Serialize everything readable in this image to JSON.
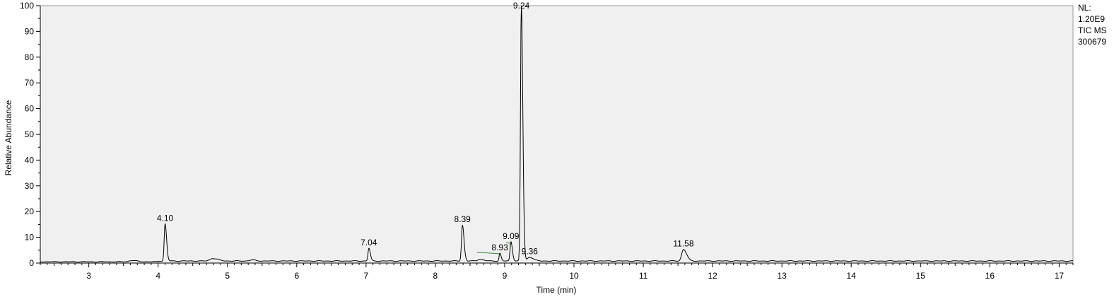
{
  "side_info": {
    "line1": "NL:",
    "line2": "1.20E9",
    "line3": "TIC  MS",
    "line4": "300679"
  },
  "chart_data": {
    "type": "line",
    "title": "",
    "xlabel": "Time (min)",
    "ylabel": "Relative Abundance",
    "xlim": [
      2.3,
      17.2
    ],
    "ylim": [
      0,
      100
    ],
    "x_ticks": [
      3,
      4,
      5,
      6,
      7,
      8,
      9,
      10,
      11,
      12,
      13,
      14,
      15,
      16,
      17
    ],
    "y_ticks": [
      0,
      10,
      20,
      30,
      40,
      50,
      60,
      70,
      80,
      90,
      100
    ],
    "grid": false,
    "background": "#f0f0f0",
    "trace_color": "#000000",
    "integration_color": "#2e8b2e",
    "baseline": 0.8,
    "peaks": [
      {
        "rt": 3.62,
        "height": 0.5,
        "width": 0.04
      },
      {
        "rt": 4.1,
        "height": 14.5,
        "width": 0.012,
        "label": "4.10"
      },
      {
        "rt": 4.79,
        "height": 1.0,
        "width": 0.04
      },
      {
        "rt": 5.35,
        "height": 0.4,
        "width": 0.03
      },
      {
        "rt": 7.04,
        "height": 5.0,
        "width": 0.012,
        "label": "7.04"
      },
      {
        "rt": 8.39,
        "height": 14.0,
        "width": 0.013,
        "label": "8.39"
      },
      {
        "rt": 8.64,
        "height": 0.7,
        "width": 0.03
      },
      {
        "rt": 8.93,
        "height": 3.0,
        "width": 0.01,
        "label": "8.93"
      },
      {
        "rt": 9.09,
        "height": 7.5,
        "width": 0.012,
        "label": "9.09"
      },
      {
        "rt": 9.24,
        "height": 100.0,
        "width": 0.012,
        "label": "9.24"
      },
      {
        "rt": 9.36,
        "height": 1.5,
        "width": 0.03,
        "label": "9.36"
      },
      {
        "rt": 11.58,
        "height": 4.5,
        "width": 0.025,
        "label": "11.58"
      }
    ],
    "integrations": [
      {
        "from": 8.6,
        "to": 8.93,
        "y_from": 4.2,
        "y_to": 3.6
      },
      {
        "from": 9.02,
        "to": 9.1,
        "y_from": 8.0,
        "y_to": 7.6
      }
    ]
  }
}
